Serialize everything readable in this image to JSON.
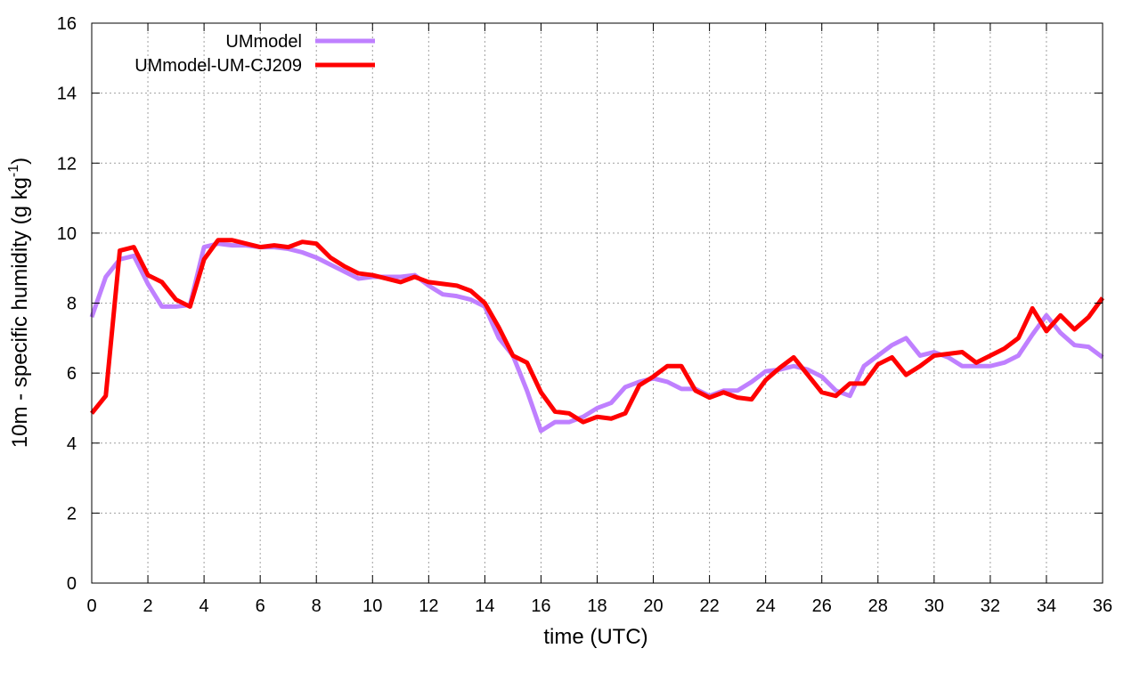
{
  "chart_data": {
    "type": "line",
    "title": "",
    "xlabel": "time (UTC)",
    "ylabel_main": "10m - specific humidity (g kg",
    "ylabel_sup": "-1",
    "ylabel_tail": ")",
    "xlim": [
      0,
      36
    ],
    "ylim": [
      0,
      16
    ],
    "xticks": [
      0,
      2,
      4,
      6,
      8,
      10,
      12,
      14,
      16,
      18,
      20,
      22,
      24,
      26,
      28,
      30,
      32,
      34,
      36
    ],
    "yticks": [
      0,
      2,
      4,
      6,
      8,
      10,
      12,
      14,
      16
    ],
    "grid": true,
    "legend_position": "top-left",
    "series": [
      {
        "name": "UMmodel",
        "color": "#bf80ff",
        "x": [
          0,
          0.5,
          1,
          1.5,
          2,
          2.5,
          3,
          3.5,
          4,
          4.5,
          5,
          5.5,
          6,
          6.5,
          7,
          7.5,
          8,
          8.5,
          9,
          9.5,
          10,
          10.5,
          11,
          11.5,
          12,
          12.5,
          13,
          13.5,
          14,
          14.5,
          15,
          15.5,
          16,
          16.5,
          17,
          17.5,
          18,
          18.5,
          19,
          19.5,
          20,
          20.5,
          21,
          21.5,
          22,
          22.5,
          23,
          23.5,
          24,
          24.5,
          25,
          25.5,
          26,
          26.5,
          27,
          27.5,
          28,
          28.5,
          29,
          29.5,
          30,
          30.5,
          31,
          31.5,
          32,
          32.5,
          33,
          33.5,
          34,
          34.5,
          35,
          35.5,
          36
        ],
        "y": [
          7.6,
          8.75,
          9.25,
          9.35,
          8.55,
          7.9,
          7.9,
          7.95,
          9.6,
          9.7,
          9.65,
          9.65,
          9.6,
          9.6,
          9.55,
          9.45,
          9.3,
          9.1,
          8.9,
          8.7,
          8.75,
          8.75,
          8.75,
          8.8,
          8.5,
          8.25,
          8.2,
          8.1,
          7.9,
          7.0,
          6.5,
          5.5,
          4.35,
          4.6,
          4.6,
          4.75,
          5.0,
          5.15,
          5.6,
          5.75,
          5.85,
          5.75,
          5.55,
          5.55,
          5.35,
          5.5,
          5.5,
          5.75,
          6.05,
          6.1,
          6.2,
          6.1,
          5.9,
          5.5,
          5.35,
          6.2,
          6.5,
          6.8,
          7.0,
          6.5,
          6.6,
          6.45,
          6.2,
          6.2,
          6.2,
          6.3,
          6.5,
          7.1,
          7.65,
          7.15,
          6.8,
          6.75,
          6.45
        ]
      },
      {
        "name": "UMmodel-UM-CJ209",
        "color": "#ff0000",
        "x": [
          0,
          0.5,
          1,
          1.5,
          2,
          2.5,
          3,
          3.5,
          4,
          4.5,
          5,
          5.5,
          6,
          6.5,
          7,
          7.5,
          8,
          8.5,
          9,
          9.5,
          10,
          10.5,
          11,
          11.5,
          12,
          12.5,
          13,
          13.5,
          14,
          14.5,
          15,
          15.5,
          16,
          16.5,
          17,
          17.5,
          18,
          18.5,
          19,
          19.5,
          20,
          20.5,
          21,
          21.5,
          22,
          22.5,
          23,
          23.5,
          24,
          24.5,
          25,
          25.5,
          26,
          26.5,
          27,
          27.5,
          28,
          28.5,
          29,
          29.5,
          30,
          30.5,
          31,
          31.5,
          32,
          32.5,
          33,
          33.5,
          34,
          34.5,
          35,
          35.5,
          36
        ],
        "y": [
          4.85,
          5.35,
          9.5,
          9.6,
          8.8,
          8.6,
          8.1,
          7.9,
          9.25,
          9.8,
          9.8,
          9.7,
          9.6,
          9.65,
          9.6,
          9.75,
          9.7,
          9.3,
          9.05,
          8.85,
          8.8,
          8.7,
          8.6,
          8.75,
          8.6,
          8.55,
          8.5,
          8.35,
          8.0,
          7.3,
          6.5,
          6.3,
          5.45,
          4.9,
          4.85,
          4.6,
          4.75,
          4.7,
          4.85,
          5.65,
          5.9,
          6.2,
          6.2,
          5.5,
          5.3,
          5.45,
          5.3,
          5.25,
          5.8,
          6.15,
          6.45,
          5.95,
          5.45,
          5.35,
          5.7,
          5.7,
          6.25,
          6.45,
          5.95,
          6.2,
          6.5,
          6.55,
          6.6,
          6.3,
          6.5,
          6.7,
          7.0,
          7.85,
          7.2,
          7.65,
          7.25,
          7.6,
          8.15
        ]
      }
    ]
  }
}
